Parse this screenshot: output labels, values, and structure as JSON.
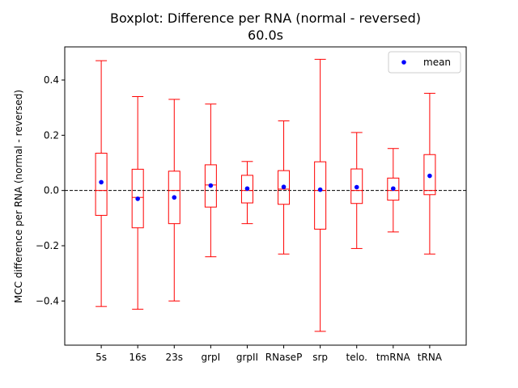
{
  "chart_data": {
    "type": "boxplot",
    "title": "Boxplot: Difference per RNA (normal - reversed)",
    "subtitle": "60.0s",
    "xlabel": "",
    "ylabel": "MCC difference per RNA (normal - reversed)",
    "categories": [
      "5s",
      "16s",
      "23s",
      "grpI",
      "grpII",
      "RNaseP",
      "srp",
      "telo.",
      "tmRNA",
      "tRNA"
    ],
    "yticks": [
      -0.4,
      -0.2,
      0.0,
      0.2,
      0.4
    ],
    "ytick_labels": [
      "−0.4",
      "−0.2",
      "0.0",
      "0.2",
      "0.4"
    ],
    "ylim": [
      -0.56,
      0.52
    ],
    "reference_line": 0.0,
    "grid": false,
    "legend": {
      "position": "top-right",
      "entries": [
        "mean"
      ]
    },
    "box_color": "#ff0000",
    "mean_color": "#0000ff",
    "boxes": [
      {
        "label": "5s",
        "whislo": -0.42,
        "q1": -0.09,
        "median": 0.0,
        "q3": 0.135,
        "whishi": 0.47,
        "mean": 0.03
      },
      {
        "label": "16s",
        "whislo": -0.43,
        "q1": -0.135,
        "median": -0.025,
        "q3": 0.077,
        "whishi": 0.34,
        "mean": -0.03
      },
      {
        "label": "23s",
        "whislo": -0.4,
        "q1": -0.12,
        "median": 0.0,
        "q3": 0.07,
        "whishi": 0.33,
        "mean": -0.025
      },
      {
        "label": "grpI",
        "whislo": -0.24,
        "q1": -0.06,
        "median": 0.02,
        "q3": 0.093,
        "whishi": 0.313,
        "mean": 0.018
      },
      {
        "label": "grpII",
        "whislo": -0.12,
        "q1": -0.045,
        "median": 0.0,
        "q3": 0.055,
        "whishi": 0.105,
        "mean": 0.007
      },
      {
        "label": "RNaseP",
        "whislo": -0.23,
        "q1": -0.05,
        "median": 0.005,
        "q3": 0.072,
        "whishi": 0.252,
        "mean": 0.013
      },
      {
        "label": "srp",
        "whislo": -0.51,
        "q1": -0.14,
        "median": 0.0,
        "q3": 0.104,
        "whishi": 0.475,
        "mean": 0.003
      },
      {
        "label": "telo.",
        "whislo": -0.21,
        "q1": -0.047,
        "median": 0.0,
        "q3": 0.078,
        "whishi": 0.21,
        "mean": 0.012
      },
      {
        "label": "tmRNA",
        "whislo": -0.15,
        "q1": -0.035,
        "median": 0.0,
        "q3": 0.045,
        "whishi": 0.152,
        "mean": 0.007
      },
      {
        "label": "tRNA",
        "whislo": -0.23,
        "q1": -0.015,
        "median": 0.0,
        "q3": 0.13,
        "whishi": 0.352,
        "mean": 0.053
      }
    ]
  }
}
